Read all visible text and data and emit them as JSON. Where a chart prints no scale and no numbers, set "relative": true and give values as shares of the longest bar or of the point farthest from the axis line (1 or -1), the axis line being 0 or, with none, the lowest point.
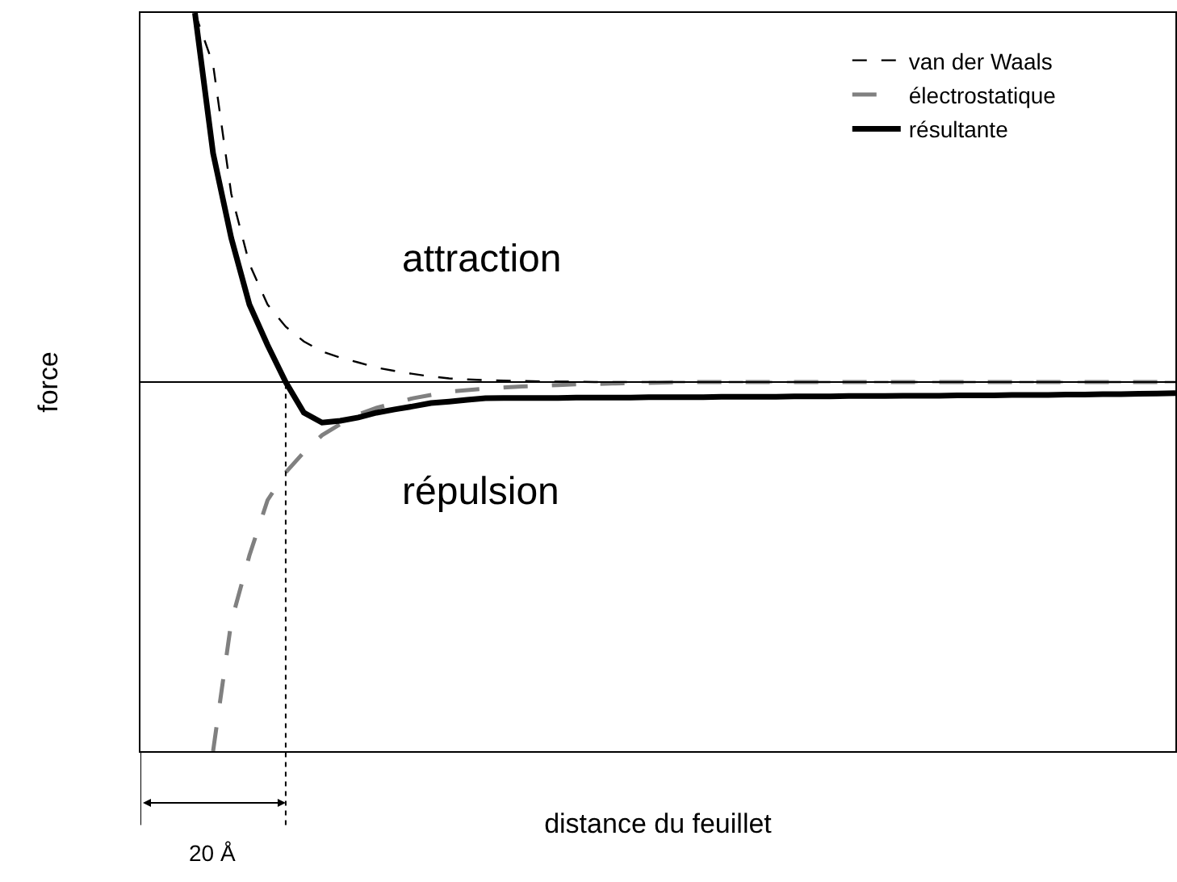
{
  "chart_data": {
    "type": "line",
    "relative": true,
    "xlabel": "distance du feuillet",
    "ylabel": "force",
    "legend": "top right",
    "tick_labels": false,
    "categories": [
      null,
      null,
      null,
      null,
      null,
      null,
      null,
      null,
      null,
      null,
      null,
      null,
      null,
      null,
      null,
      null,
      null,
      null,
      null,
      null,
      null,
      null,
      null,
      null,
      null,
      null,
      null,
      null,
      null,
      null,
      null,
      null,
      null,
      null,
      null,
      null,
      null,
      null,
      null,
      null,
      null,
      null,
      null,
      null,
      null,
      null,
      null,
      null,
      null,
      null,
      null,
      null,
      null,
      null,
      null,
      null,
      null,
      null
    ],
    "series": [
      {
        "name": "van der Waals",
        "color": "#000000",
        "line_style": "dashed",
        "values": [
          null,
          null,
          null,
          1.0,
          0.86,
          0.51,
          0.32,
          0.21,
          0.15,
          0.11,
          0.083,
          0.066,
          0.053,
          0.039,
          0.03,
          0.022,
          0.015,
          0.01,
          0.007,
          0.005,
          0.004,
          0.003,
          0.002,
          0.001,
          0.001,
          0,
          0,
          0,
          0,
          0,
          0,
          0,
          0,
          0,
          0,
          0,
          0,
          0,
          0,
          0,
          0,
          0,
          0,
          0,
          0,
          0,
          0,
          0,
          0,
          0,
          0,
          0,
          0,
          0,
          0,
          0,
          0,
          0
        ]
      },
      {
        "name": "électrostatique",
        "color": "#808080",
        "line_style": "longdash",
        "values": [
          null,
          null,
          null,
          null,
          -1.0,
          -0.65,
          -0.47,
          -0.32,
          -0.245,
          -0.19,
          -0.144,
          -0.114,
          -0.088,
          -0.07,
          -0.057,
          -0.044,
          -0.035,
          -0.026,
          -0.022,
          -0.018,
          -0.015,
          -0.012,
          -0.01,
          -0.008,
          -0.006,
          -0.005,
          -0.004,
          -0.003,
          -0.002,
          -0.001,
          0,
          0,
          0,
          0,
          0,
          0,
          0,
          0,
          0,
          0,
          0,
          0,
          0,
          0,
          0,
          0,
          0,
          0,
          0,
          0,
          0,
          0,
          0,
          0,
          0,
          0,
          0,
          0
        ]
      },
      {
        "name": "résultante",
        "color": "#000000",
        "line_style": "solid",
        "values": [
          null,
          null,
          null,
          1.0,
          0.62,
          0.39,
          0.21,
          0.1,
          0,
          -0.083,
          -0.11,
          -0.105,
          -0.096,
          -0.083,
          -0.074,
          -0.066,
          -0.057,
          -0.053,
          -0.048,
          -0.044,
          -0.043,
          -0.043,
          -0.043,
          -0.043,
          -0.042,
          -0.042,
          -0.042,
          -0.042,
          -0.041,
          -0.041,
          -0.041,
          -0.041,
          -0.04,
          -0.04,
          -0.04,
          -0.04,
          -0.039,
          -0.039,
          -0.039,
          -0.038,
          -0.038,
          -0.038,
          -0.037,
          -0.037,
          -0.037,
          -0.036,
          -0.036,
          -0.036,
          -0.035,
          -0.035,
          -0.035,
          -0.034,
          -0.034,
          -0.033,
          -0.033,
          -0.032,
          -0.031,
          -0.03
        ]
      }
    ],
    "ref_lines": [
      {
        "axis": "y",
        "value": 0,
        "color": "#000000",
        "line_style": "solid"
      },
      {
        "axis": "x",
        "label": "20 Å",
        "color": "#000000",
        "line_style": "dotted"
      }
    ],
    "annotations": [
      "attraction",
      "répulsion"
    ]
  }
}
